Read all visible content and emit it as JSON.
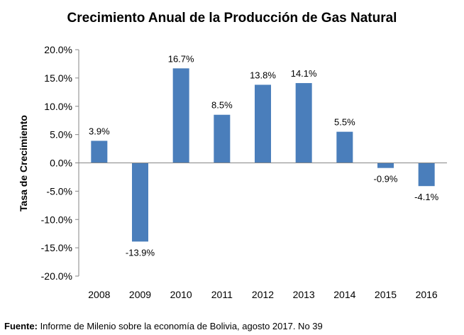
{
  "chart_data": {
    "type": "bar",
    "title": "Crecimiento Anual de la Producción de Gas Natural",
    "xlabel": "",
    "ylabel": "Tasa de Crecimiento",
    "categories": [
      "2008",
      "2009",
      "2010",
      "2011",
      "2012",
      "2013",
      "2014",
      "2015",
      "2016"
    ],
    "values": [
      3.9,
      -13.9,
      16.7,
      8.5,
      13.8,
      14.1,
      5.5,
      -0.9,
      -4.1
    ],
    "data_labels": [
      "3.9%",
      "-13.9%",
      "16.7%",
      "8.5%",
      "13.8%",
      "14.1%",
      "5.5%",
      "-0.9%",
      "-4.1%"
    ],
    "ylim": [
      -20,
      20
    ],
    "yticks": [
      20,
      15,
      10,
      5,
      0,
      -5,
      -10,
      -15,
      -20
    ],
    "ytick_labels": [
      "20.0%",
      "15.0%",
      "10.0%",
      "5.0%",
      "0.0%",
      "-5.0%",
      "-10.0%",
      "-15.0%",
      "-20.0%"
    ],
    "bar_color": "#4a7ebb",
    "grid": false,
    "legend": "none"
  },
  "source": {
    "label": "Fuente:",
    "text": " Informe de Milenio sobre la economía de Bolivia, agosto 2017. No 39"
  }
}
